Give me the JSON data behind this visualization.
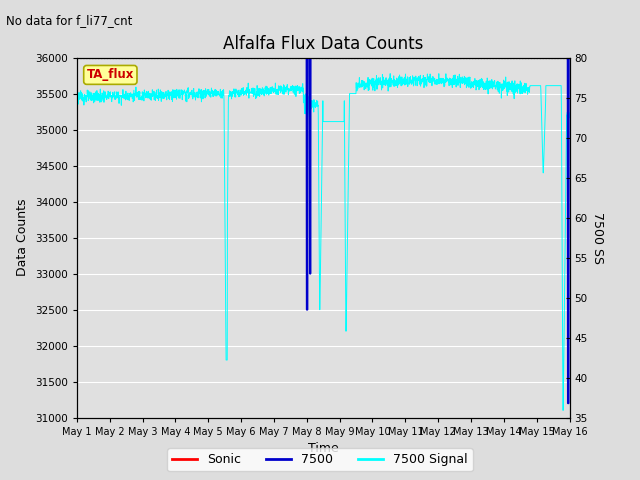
{
  "title": "Alfalfa Flux Data Counts",
  "top_left_text": "No data for f_li77_cnt",
  "xlabel": "Time",
  "ylabel_left": "Data Counts",
  "ylabel_right": "7500 SS",
  "legend_labels": [
    "Sonic",
    "7500",
    "7500 Signal"
  ],
  "legend_colors": [
    "red",
    "#0000cc",
    "cyan"
  ],
  "annotation_box": "TA_flux",
  "annotation_box_color": "#ffff99",
  "annotation_box_border": "#aaaa00",
  "x_tick_labels": [
    "May 1",
    "May 2",
    "May 3",
    "May 4",
    "May 5",
    "May 6",
    "May 7",
    "May 8",
    "May 9",
    "May 10",
    "May 11",
    "May 12",
    "May 13",
    "May 14",
    "May 15",
    "May 16"
  ],
  "ylim_left": [
    31000,
    36000
  ],
  "ylim_right": [
    35,
    80
  ],
  "background_color": "#dddddd",
  "plot_bg_color": "#e0e0e0",
  "grid_color": "white",
  "n_days": 15
}
